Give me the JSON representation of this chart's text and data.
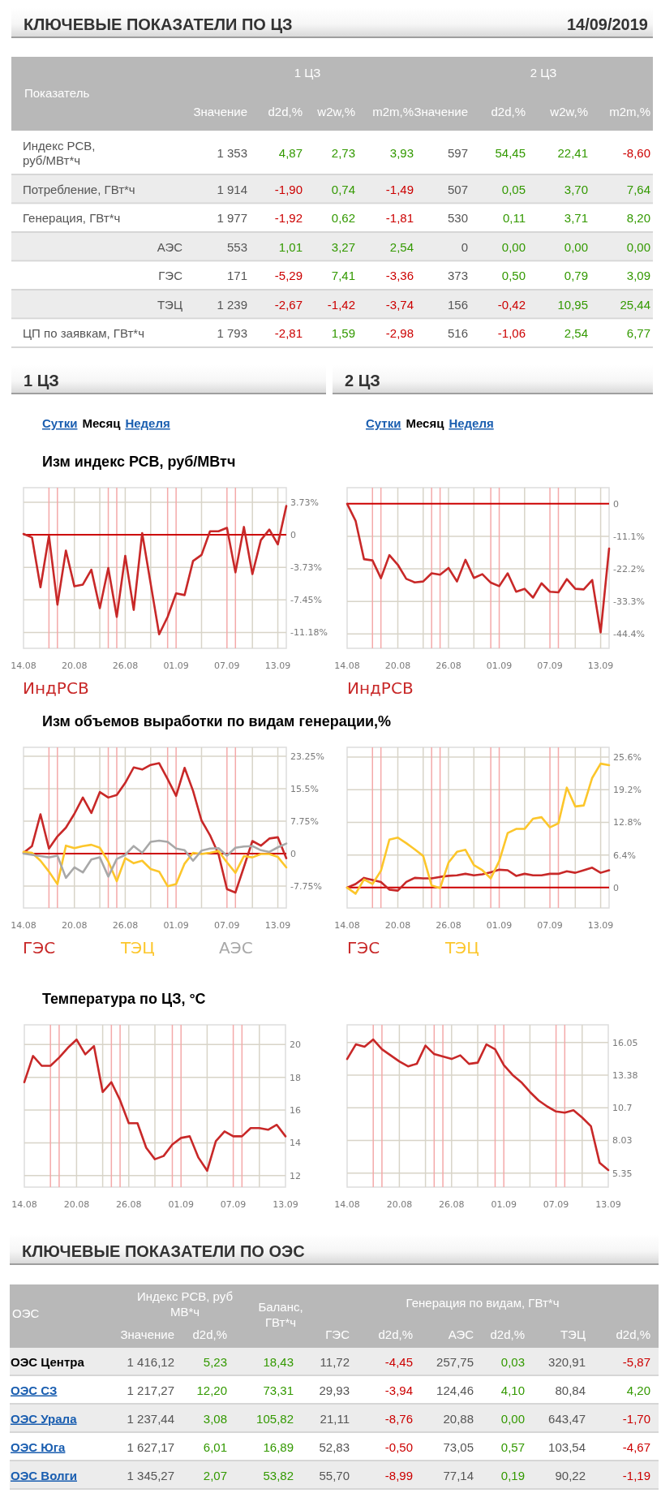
{
  "chart_data": [
    {
      "type": "other",
      "title": "КЛЮЧЕВЫЕ ПОКАЗАТЕЛИ ПО ЦЗ",
      "subtitle": "14/09/2019",
      "ylabel": "Показатель",
      "annotations": [
        "1 ЦЗ",
        "2 ЦЗ"
      ],
      "categories": [
        "Значение",
        "d2d,%",
        "w2w,%",
        "m2m,%",
        "Значение",
        "d2d,%",
        "w2w,%",
        "m2m,%"
      ],
      "y_categories": [
        "Индекс РСВ,\nруб/МВт*ч",
        "Потребление, ГВт*ч",
        "Генерация, ГВт*ч",
        "АЭС",
        "ГЭС",
        "ТЭЦ",
        "ЦП по заявкам, ГВт*ч"
      ],
      "cell_labels": [
        [
          "1 353",
          "4,87",
          "2,73",
          "3,93",
          "597",
          "54,45",
          "22,41",
          "-8,60"
        ],
        [
          "1 914",
          "-1,90",
          "0,74",
          "-1,49",
          "507",
          "0,05",
          "3,70",
          "7,64"
        ],
        [
          "1 977",
          "-1,92",
          "0,62",
          "-1,81",
          "530",
          "0,11",
          "3,71",
          "8,20"
        ],
        [
          "553",
          "1,01",
          "3,27",
          "2,54",
          "0",
          "0,00",
          "0,00",
          "0,00"
        ],
        [
          "171",
          "-5,29",
          "7,41",
          "-3,36",
          "373",
          "0,50",
          "0,79",
          "3,09"
        ],
        [
          "1 239",
          "-2,67",
          "-1,42",
          "-3,74",
          "156",
          "-0,42",
          "10,95",
          "25,44"
        ],
        [
          "1 793",
          "-2,81",
          "1,59",
          "-2,98",
          "516",
          "-1,06",
          "2,54",
          "6,77"
        ]
      ],
      "colors": [
        [
          "#555555",
          "#555555",
          "#339900",
          "#339900",
          "#339900",
          "#555555",
          "#339900",
          "#339900",
          "#cc0000"
        ],
        [
          "#555555",
          "#555555",
          "#cc0000",
          "#339900",
          "#cc0000",
          "#555555",
          "#339900",
          "#339900",
          "#339900"
        ],
        [
          "#555555",
          "#555555",
          "#cc0000",
          "#339900",
          "#cc0000",
          "#555555",
          "#339900",
          "#339900",
          "#339900"
        ],
        [
          "#555555",
          "#555555",
          "#339900",
          "#339900",
          "#339900",
          "#555555",
          "#339900",
          "#339900",
          "#339900"
        ],
        [
          "#555555",
          "#555555",
          "#cc0000",
          "#339900",
          "#cc0000",
          "#555555",
          "#339900",
          "#339900",
          "#339900"
        ],
        [
          "#555555",
          "#555555",
          "#cc0000",
          "#cc0000",
          "#cc0000",
          "#555555",
          "#cc0000",
          "#339900",
          "#339900"
        ],
        [
          "#555555",
          "#555555",
          "#cc0000",
          "#339900",
          "#cc0000",
          "#555555",
          "#cc0000",
          "#339900",
          "#339900"
        ]
      ]
    },
    {
      "type": "other",
      "title": "1 ЦЗ",
      "annotations": [
        "Сутки",
        "Месяц",
        "Неделя"
      ],
      "colors": [
        "#1a5eb0",
        "#000000",
        "#1a5eb0"
      ]
    },
    {
      "type": "other",
      "title": "2 ЦЗ",
      "annotations": [
        "Сутки",
        "Месяц",
        "Неделя"
      ],
      "colors": [
        "#1a5eb0",
        "#000000",
        "#1a5eb0"
      ]
    },
    {
      "type": "line",
      "title": "Изм индекс РСВ, руб/МВтч",
      "x": [
        "--08-14",
        "--08-15",
        "--08-16",
        "--08-17",
        "--08-18",
        "--08-19",
        "--08-20",
        "--08-21",
        "--08-22",
        "--08-23",
        "--08-24",
        "--08-25",
        "--08-26",
        "--08-27",
        "--08-28",
        "--08-29",
        "--08-30",
        "--08-31",
        "--09-01",
        "--09-02",
        "--09-03",
        "--09-04",
        "--09-05",
        "--09-06",
        "--09-07",
        "--09-08",
        "--09-09",
        "--09-10",
        "--09-11",
        "--09-12",
        "--09-13",
        "--09-14"
      ],
      "series": [
        {
          "name": "ИндРСВ",
          "color": "#c82828",
          "values": [
            0.1,
            -0.3,
            -6.0,
            -0.1,
            -8.0,
            -1.8,
            -5.9,
            -5.7,
            -4.0,
            -8.4,
            -3.8,
            -9.4,
            -2.4,
            -8.6,
            0.2,
            -5.6,
            -11.4,
            -9.4,
            -6.7,
            -6.9,
            -3.0,
            -2.3,
            0.4,
            0.4,
            0.8,
            -4.3,
            0.9,
            -4.5,
            -0.6,
            0.6,
            -1.1,
            3.3
          ]
        }
      ],
      "xlim": [
        "--08-14",
        "--09-14"
      ],
      "xticks": [
        {
          "value": "--08-14",
          "label": "14.08"
        },
        {
          "value": "--08-20",
          "label": "20.08"
        },
        {
          "value": "--08-26",
          "label": "26.08"
        },
        {
          "value": "--09-01",
          "label": "01.09"
        },
        {
          "value": "--09-07",
          "label": "07.09"
        },
        {
          "value": "--09-13",
          "label": "13.09"
        }
      ],
      "ylim": [
        -13,
        5.4
      ],
      "yticks": [
        {
          "value": 3.73,
          "label": "3.73%"
        },
        0,
        {
          "value": -3.73,
          "label": "-3.73%"
        },
        {
          "value": -7.45,
          "label": "-7.45%"
        },
        {
          "value": -11.18,
          "label": "-11.18%"
        }
      ],
      "grid": "y",
      "legend": "bottom",
      "ref_lines": [
        {
          "axis": "x",
          "value": "--08-17",
          "color": "#f4a9a9"
        },
        {
          "axis": "x",
          "value": "--08-18",
          "color": "#f4a9a9"
        },
        {
          "axis": "x",
          "value": "--08-20",
          "color": "#d8d4c8"
        },
        {
          "axis": "x",
          "value": "--08-23",
          "color": "#d8d4c8"
        },
        {
          "axis": "x",
          "value": "--08-24",
          "color": "#f4a9a9"
        },
        {
          "axis": "x",
          "value": "--08-25",
          "color": "#f4a9a9"
        },
        {
          "axis": "x",
          "value": "--08-26",
          "color": "#d8d4c8"
        },
        {
          "axis": "x",
          "value": "--08-29",
          "color": "#d8d4c8"
        },
        {
          "axis": "x",
          "value": "--08-31",
          "color": "#f4a9a9"
        },
        {
          "axis": "x",
          "value": "--09-01",
          "color": "#f4a9a9"
        },
        {
          "axis": "x",
          "value": "--09-04",
          "color": "#d8d4c8"
        },
        {
          "axis": "x",
          "value": "--09-07",
          "color": "#f4a9a9"
        },
        {
          "axis": "x",
          "value": "--09-08",
          "color": "#f4a9a9"
        },
        {
          "axis": "x",
          "value": "--09-10",
          "color": "#d8d4c8"
        },
        {
          "axis": "x",
          "value": "--09-13",
          "color": "#d8d4c8"
        },
        {
          "axis": "y",
          "value": 0,
          "color": "#cc0000"
        }
      ]
    },
    {
      "type": "line",
      "x": [
        "--08-14",
        "--08-15",
        "--08-16",
        "--08-17",
        "--08-18",
        "--08-19",
        "--08-20",
        "--08-21",
        "--08-22",
        "--08-23",
        "--08-24",
        "--08-25",
        "--08-26",
        "--08-27",
        "--08-28",
        "--08-29",
        "--08-30",
        "--08-31",
        "--09-01",
        "--09-02",
        "--09-03",
        "--09-04",
        "--09-05",
        "--09-06",
        "--09-07",
        "--09-08",
        "--09-09",
        "--09-10",
        "--09-11",
        "--09-12",
        "--09-13",
        "--09-14"
      ],
      "series": [
        {
          "name": "ИндРСВ",
          "color": "#c82828",
          "values": [
            0,
            -5.8,
            -18.9,
            -19.3,
            -25.4,
            -17.5,
            -20.8,
            -25.6,
            -26.8,
            -26.5,
            -23.7,
            -24.2,
            -21.9,
            -26.5,
            -19.1,
            -25.3,
            -24.0,
            -26.9,
            -28.1,
            -23.7,
            -30.0,
            -29.0,
            -32.0,
            -27.1,
            -30.0,
            -30.2,
            -25.7,
            -29.0,
            -29.2,
            -26.0,
            -43.9,
            -15.3
          ]
        }
      ],
      "xlim": [
        "--08-14",
        "--09-14"
      ],
      "xticks": [
        {
          "value": "--08-14",
          "label": "14.08"
        },
        {
          "value": "--08-20",
          "label": "20.08"
        },
        {
          "value": "--08-26",
          "label": "26.08"
        },
        {
          "value": "--09-01",
          "label": "01.09"
        },
        {
          "value": "--09-07",
          "label": "07.09"
        },
        {
          "value": "--09-13",
          "label": "13.09"
        }
      ],
      "ylim": [
        -49.3,
        5.5
      ],
      "yticks": [
        0,
        {
          "value": -11.1,
          "label": "-11.1%"
        },
        {
          "value": -22.2,
          "label": "-22.2%"
        },
        {
          "value": -33.3,
          "label": "-33.3%"
        },
        {
          "value": -44.4,
          "label": "-44.4%"
        }
      ],
      "grid": "y",
      "legend": "bottom",
      "ref_lines": [
        {
          "axis": "x",
          "value": "--08-17",
          "color": "#f4a9a9"
        },
        {
          "axis": "x",
          "value": "--08-18",
          "color": "#f4a9a9"
        },
        {
          "axis": "x",
          "value": "--08-20",
          "color": "#d8d4c8"
        },
        {
          "axis": "x",
          "value": "--08-23",
          "color": "#d8d4c8"
        },
        {
          "axis": "x",
          "value": "--08-24",
          "color": "#f4a9a9"
        },
        {
          "axis": "x",
          "value": "--08-25",
          "color": "#f4a9a9"
        },
        {
          "axis": "x",
          "value": "--08-26",
          "color": "#d8d4c8"
        },
        {
          "axis": "x",
          "value": "--08-29",
          "color": "#d8d4c8"
        },
        {
          "axis": "x",
          "value": "--08-31",
          "color": "#f4a9a9"
        },
        {
          "axis": "x",
          "value": "--09-01",
          "color": "#f4a9a9"
        },
        {
          "axis": "x",
          "value": "--09-04",
          "color": "#d8d4c8"
        },
        {
          "axis": "x",
          "value": "--09-07",
          "color": "#f4a9a9"
        },
        {
          "axis": "x",
          "value": "--09-08",
          "color": "#f4a9a9"
        },
        {
          "axis": "x",
          "value": "--09-10",
          "color": "#d8d4c8"
        },
        {
          "axis": "x",
          "value": "--09-13",
          "color": "#d8d4c8"
        },
        {
          "axis": "y",
          "value": 0,
          "color": "#cc0000"
        }
      ]
    },
    {
      "type": "line",
      "title": "Изм объемов выработки по видам генерации,%",
      "x": [
        "--08-14",
        "--08-15",
        "--08-16",
        "--08-17",
        "--08-18",
        "--08-19",
        "--08-20",
        "--08-21",
        "--08-22",
        "--08-23",
        "--08-24",
        "--08-25",
        "--08-26",
        "--08-27",
        "--08-28",
        "--08-29",
        "--08-30",
        "--08-31",
        "--09-01",
        "--09-02",
        "--09-03",
        "--09-04",
        "--09-05",
        "--09-06",
        "--09-07",
        "--09-08",
        "--09-09",
        "--09-10",
        "--09-11",
        "--09-12",
        "--09-13",
        "--09-14"
      ],
      "series": [
        {
          "name": "ГЭС",
          "color": "#c82828",
          "values": [
            0.2,
            1.8,
            9.4,
            1.2,
            4.1,
            6.2,
            9.5,
            13.4,
            9.7,
            14.7,
            13.4,
            14.0,
            16.9,
            20.6,
            20.1,
            21.2,
            21.6,
            17.8,
            13.8,
            20.5,
            15.0,
            7.9,
            4.4,
            -0.1,
            -8.5,
            -9.3,
            -3.2,
            3.0,
            1.9,
            3.6,
            3.9,
            -1.1
          ]
        },
        {
          "name": "ТЭЦ",
          "color": "#fcc62b",
          "values": [
            0.4,
            0.2,
            -1.7,
            -4.3,
            -7.3,
            1.9,
            1.3,
            1.8,
            2.1,
            1.4,
            -1.9,
            -6.6,
            -1.1,
            -2.3,
            -1.7,
            -3.7,
            -4.3,
            -7.8,
            -7.3,
            -2.4,
            0.2,
            -0.1,
            0.2,
            0.6,
            -2.1,
            -4.6,
            -0.6,
            -0.9,
            -0.1,
            -0.1,
            -0.8,
            -3.3
          ]
        },
        {
          "name": "АЭС",
          "color": "#a8a8a8",
          "values": [
            0,
            -0.3,
            -0.6,
            -0.9,
            -0.5,
            -5.8,
            -3.3,
            -4.5,
            -1.4,
            -0.9,
            -5.5,
            -1.3,
            -0.3,
            1.8,
            0.2,
            2.8,
            3.1,
            2.8,
            1.2,
            0.8,
            -1.7,
            0.7,
            1.2,
            1.3,
            -0.5,
            1.4,
            1.7,
            1.8,
            0.8,
            0.4,
            1.5,
            2.4
          ]
        }
      ],
      "xlim": [
        "--08-14",
        "--09-14"
      ],
      "xticks": [
        {
          "value": "--08-14",
          "label": "14.08"
        },
        {
          "value": "--08-20",
          "label": "20.08"
        },
        {
          "value": "--08-26",
          "label": "26.08"
        },
        {
          "value": "--09-01",
          "label": "01.09"
        },
        {
          "value": "--09-07",
          "label": "07.09"
        },
        {
          "value": "--09-13",
          "label": "13.09"
        }
      ],
      "ylim": [
        -13,
        25.4
      ],
      "yticks": [
        {
          "value": 23.25,
          "label": "23.25%"
        },
        {
          "value": 15.5,
          "label": "15.5%"
        },
        {
          "value": 7.75,
          "label": "7.75%"
        },
        0,
        {
          "value": -7.75,
          "label": "-7.75%"
        }
      ],
      "grid": "y",
      "legend": "bottom",
      "ref_lines": [
        {
          "axis": "x",
          "value": "--08-17",
          "color": "#f4a9a9"
        },
        {
          "axis": "x",
          "value": "--08-18",
          "color": "#f4a9a9"
        },
        {
          "axis": "x",
          "value": "--08-20",
          "color": "#d8d4c8"
        },
        {
          "axis": "x",
          "value": "--08-23",
          "color": "#d8d4c8"
        },
        {
          "axis": "x",
          "value": "--08-24",
          "color": "#f4a9a9"
        },
        {
          "axis": "x",
          "value": "--08-25",
          "color": "#f4a9a9"
        },
        {
          "axis": "x",
          "value": "--08-26",
          "color": "#d8d4c8"
        },
        {
          "axis": "x",
          "value": "--08-29",
          "color": "#d8d4c8"
        },
        {
          "axis": "x",
          "value": "--08-31",
          "color": "#f4a9a9"
        },
        {
          "axis": "x",
          "value": "--09-01",
          "color": "#f4a9a9"
        },
        {
          "axis": "x",
          "value": "--09-04",
          "color": "#d8d4c8"
        },
        {
          "axis": "x",
          "value": "--09-07",
          "color": "#f4a9a9"
        },
        {
          "axis": "x",
          "value": "--09-08",
          "color": "#f4a9a9"
        },
        {
          "axis": "x",
          "value": "--09-10",
          "color": "#d8d4c8"
        },
        {
          "axis": "x",
          "value": "--09-13",
          "color": "#d8d4c8"
        },
        {
          "axis": "y",
          "value": 0,
          "color": "#cc0000"
        }
      ]
    },
    {
      "type": "line",
      "x": [
        "--08-14",
        "--08-15",
        "--08-16",
        "--08-17",
        "--08-18",
        "--08-19",
        "--08-20",
        "--08-21",
        "--08-22",
        "--08-23",
        "--08-24",
        "--08-25",
        "--08-26",
        "--08-27",
        "--08-28",
        "--08-29",
        "--08-30",
        "--08-31",
        "--09-01",
        "--09-02",
        "--09-03",
        "--09-04",
        "--09-05",
        "--09-06",
        "--09-07",
        "--09-08",
        "--09-09",
        "--09-10",
        "--09-11",
        "--09-12",
        "--09-13",
        "--09-14"
      ],
      "series": [
        {
          "name": "ГЭС",
          "color": "#c82828",
          "values": [
            0,
            0.7,
            1.9,
            1.5,
            1.1,
            -0.4,
            -0.6,
            1.1,
            1.9,
            1.8,
            1.8,
            2.1,
            2.3,
            2.4,
            2.7,
            2.4,
            2.6,
            3.0,
            3.5,
            3.4,
            2.3,
            2.7,
            2.4,
            2.4,
            2.7,
            2.7,
            3.2,
            2.9,
            3.4,
            3.9,
            2.9,
            3.4
          ]
        },
        {
          "name": "ТЭЦ",
          "color": "#fcc62b",
          "values": [
            0,
            -1.2,
            1.6,
            0.7,
            3.3,
            9.4,
            9.8,
            8.7,
            7.5,
            6.2,
            0.4,
            -0.1,
            4.9,
            7.0,
            7.4,
            4.4,
            3.4,
            1.8,
            5.2,
            10.7,
            11.5,
            11.5,
            13.5,
            13.8,
            11.8,
            12.6,
            19.6,
            15.9,
            16.1,
            21.5,
            24.3,
            24.0
          ]
        }
      ],
      "xlim": [
        "--08-14",
        "--09-14"
      ],
      "xticks": [
        {
          "value": "--08-14",
          "label": "14.08"
        },
        {
          "value": "--08-20",
          "label": "20.08"
        },
        {
          "value": "--08-26",
          "label": "26.08"
        },
        {
          "value": "--09-01",
          "label": "01.09"
        },
        {
          "value": "--09-07",
          "label": "07.09"
        },
        {
          "value": "--09-13",
          "label": "13.09"
        }
      ],
      "ylim": [
        -4,
        27.5
      ],
      "yticks": [
        {
          "value": 25.6,
          "label": "25.6%"
        },
        {
          "value": 19.2,
          "label": "19.2%"
        },
        {
          "value": 12.8,
          "label": "12.8%"
        },
        {
          "value": 6.4,
          "label": "6.4%"
        },
        0
      ],
      "grid": "y",
      "legend": "bottom",
      "ref_lines": [
        {
          "axis": "x",
          "value": "--08-17",
          "color": "#f4a9a9"
        },
        {
          "axis": "x",
          "value": "--08-18",
          "color": "#f4a9a9"
        },
        {
          "axis": "x",
          "value": "--08-20",
          "color": "#d8d4c8"
        },
        {
          "axis": "x",
          "value": "--08-23",
          "color": "#d8d4c8"
        },
        {
          "axis": "x",
          "value": "--08-24",
          "color": "#f4a9a9"
        },
        {
          "axis": "x",
          "value": "--08-25",
          "color": "#f4a9a9"
        },
        {
          "axis": "x",
          "value": "--08-26",
          "color": "#d8d4c8"
        },
        {
          "axis": "x",
          "value": "--08-29",
          "color": "#d8d4c8"
        },
        {
          "axis": "x",
          "value": "--08-31",
          "color": "#f4a9a9"
        },
        {
          "axis": "x",
          "value": "--09-01",
          "color": "#f4a9a9"
        },
        {
          "axis": "x",
          "value": "--09-04",
          "color": "#d8d4c8"
        },
        {
          "axis": "x",
          "value": "--09-07",
          "color": "#f4a9a9"
        },
        {
          "axis": "x",
          "value": "--09-08",
          "color": "#f4a9a9"
        },
        {
          "axis": "x",
          "value": "--09-10",
          "color": "#d8d4c8"
        },
        {
          "axis": "x",
          "value": "--09-13",
          "color": "#d8d4c8"
        },
        {
          "axis": "y",
          "value": 0,
          "color": "#cc0000"
        }
      ]
    },
    {
      "type": "line",
      "title": "Температура по ЦЗ, °C",
      "x": [
        "--08-14",
        "--08-15",
        "--08-16",
        "--08-17",
        "--08-18",
        "--08-19",
        "--08-20",
        "--08-21",
        "--08-22",
        "--08-23",
        "--08-24",
        "--08-25",
        "--08-26",
        "--08-27",
        "--08-28",
        "--08-29",
        "--08-30",
        "--08-31",
        "--09-01",
        "--09-02",
        "--09-03",
        "--09-04",
        "--09-05",
        "--09-06",
        "--09-07",
        "--09-08",
        "--09-09",
        "--09-10",
        "--09-11",
        "--09-12",
        "--09-13"
      ],
      "series": [
        {
          "color": "#c82828",
          "values": [
            17.7,
            19.3,
            18.7,
            18.7,
            19.2,
            19.8,
            20.3,
            19.4,
            19.9,
            17.1,
            17.7,
            16.6,
            15.2,
            15.2,
            13.7,
            13.0,
            13.2,
            13.9,
            14.3,
            14.4,
            13.1,
            12.3,
            14.1,
            14.7,
            14.4,
            14.4,
            14.9,
            14.9,
            14.8,
            15.1,
            14.4
          ]
        }
      ],
      "xlim": [
        "--08-14",
        "--09-13"
      ],
      "xticks": [
        {
          "value": "--08-14",
          "label": "14.08"
        },
        {
          "value": "--08-20",
          "label": "20.08"
        },
        {
          "value": "--08-26",
          "label": "26.08"
        },
        {
          "value": "--09-01",
          "label": "01.09"
        },
        {
          "value": "--09-07",
          "label": "07.09"
        },
        {
          "value": "--09-13",
          "label": "13.09"
        }
      ],
      "ylim": [
        11.3,
        21.2
      ],
      "yticks": [
        20,
        18,
        16,
        14,
        12
      ],
      "grid": "y",
      "ref_lines": [
        {
          "axis": "x",
          "value": "--08-17",
          "color": "#f4a9a9"
        },
        {
          "axis": "x",
          "value": "--08-18",
          "color": "#f4a9a9"
        },
        {
          "axis": "x",
          "value": "--08-20",
          "color": "#d8d4c8"
        },
        {
          "axis": "x",
          "value": "--08-23",
          "color": "#d8d4c8"
        },
        {
          "axis": "x",
          "value": "--08-24",
          "color": "#f4a9a9"
        },
        {
          "axis": "x",
          "value": "--08-25",
          "color": "#f4a9a9"
        },
        {
          "axis": "x",
          "value": "--08-26",
          "color": "#d8d4c8"
        },
        {
          "axis": "x",
          "value": "--08-29",
          "color": "#d8d4c8"
        },
        {
          "axis": "x",
          "value": "--08-31",
          "color": "#f4a9a9"
        },
        {
          "axis": "x",
          "value": "--09-01",
          "color": "#f4a9a9"
        },
        {
          "axis": "x",
          "value": "--09-04",
          "color": "#d8d4c8"
        },
        {
          "axis": "x",
          "value": "--09-07",
          "color": "#f4a9a9"
        },
        {
          "axis": "x",
          "value": "--09-08",
          "color": "#f4a9a9"
        },
        {
          "axis": "x",
          "value": "--09-10",
          "color": "#d8d4c8"
        }
      ]
    },
    {
      "type": "line",
      "x": [
        "--08-14",
        "--08-15",
        "--08-16",
        "--08-17",
        "--08-18",
        "--08-19",
        "--08-20",
        "--08-21",
        "--08-22",
        "--08-23",
        "--08-24",
        "--08-25",
        "--08-26",
        "--08-27",
        "--08-28",
        "--08-29",
        "--08-30",
        "--08-31",
        "--09-01",
        "--09-02",
        "--09-03",
        "--09-04",
        "--09-05",
        "--09-06",
        "--09-07",
        "--09-08",
        "--09-09",
        "--09-10",
        "--09-11",
        "--09-12",
        "--09-13"
      ],
      "series": [
        {
          "color": "#c82828",
          "values": [
            14.7,
            15.9,
            15.7,
            16.3,
            15.5,
            15.0,
            14.5,
            14.1,
            14.3,
            15.8,
            15.1,
            14.9,
            14.7,
            15.0,
            14.3,
            14.4,
            15.9,
            15.5,
            14.2,
            13.4,
            12.8,
            12.0,
            11.3,
            10.8,
            10.4,
            10.3,
            10.5,
            9.9,
            9.2,
            6.2,
            5.6
          ]
        }
      ],
      "xlim": [
        "--08-14",
        "--09-13"
      ],
      "xticks": [
        {
          "value": "--08-14",
          "label": "14.08"
        },
        {
          "value": "--08-20",
          "label": "20.08"
        },
        {
          "value": "--08-26",
          "label": "26.08"
        },
        {
          "value": "--09-01",
          "label": "01.09"
        },
        {
          "value": "--09-07",
          "label": "07.09"
        },
        {
          "value": "--09-13",
          "label": "13.09"
        }
      ],
      "ylim": [
        4.2,
        17.5
      ],
      "yticks": [
        16.05,
        13.38,
        10.7,
        8.03,
        5.35
      ],
      "grid": "y",
      "ref_lines": [
        {
          "axis": "x",
          "value": "--08-17",
          "color": "#f4a9a9"
        },
        {
          "axis": "x",
          "value": "--08-18",
          "color": "#f4a9a9"
        },
        {
          "axis": "x",
          "value": "--08-20",
          "color": "#d8d4c8"
        },
        {
          "axis": "x",
          "value": "--08-23",
          "color": "#d8d4c8"
        },
        {
          "axis": "x",
          "value": "--08-24",
          "color": "#f4a9a9"
        },
        {
          "axis": "x",
          "value": "--08-25",
          "color": "#f4a9a9"
        },
        {
          "axis": "x",
          "value": "--08-26",
          "color": "#d8d4c8"
        },
        {
          "axis": "x",
          "value": "--08-29",
          "color": "#d8d4c8"
        },
        {
          "axis": "x",
          "value": "--08-31",
          "color": "#f4a9a9"
        },
        {
          "axis": "x",
          "value": "--09-01",
          "color": "#f4a9a9"
        },
        {
          "axis": "x",
          "value": "--09-04",
          "color": "#d8d4c8"
        },
        {
          "axis": "x",
          "value": "--09-07",
          "color": "#f4a9a9"
        },
        {
          "axis": "x",
          "value": "--09-08",
          "color": "#f4a9a9"
        },
        {
          "axis": "x",
          "value": "--09-10",
          "color": "#d8d4c8"
        }
      ]
    },
    {
      "type": "other",
      "title": "КЛЮЧЕВЫЕ ПОКАЗАТЕЛИ ПО ОЭС",
      "ylabel": "ОЭС",
      "annotations": [
        "Индекс РСВ, руб\nМВ*ч",
        "Баланс,\nГВт*ч",
        "Генерация по видам, ГВт*ч"
      ],
      "categories": [
        "Значение",
        "d2d,%",
        null,
        "ГЭС",
        "d2d,%",
        "АЭС",
        "d2d,%",
        "ТЭЦ",
        "d2d,%"
      ],
      "y_categories": [
        "ОЭС Центра",
        "ОЭС СЗ",
        "ОЭС Урала",
        "ОЭС Юга",
        "ОЭС Волги"
      ],
      "cell_labels": [
        [
          "1 416,12",
          "5,23",
          "18,43",
          "11,72",
          "-4,45",
          "257,75",
          "0,03",
          "320,91",
          "-5,87"
        ],
        [
          "1 217,27",
          "12,20",
          "73,31",
          "29,93",
          "-3,94",
          "124,46",
          "4,10",
          "80,84",
          "4,20"
        ],
        [
          "1 237,44",
          "3,08",
          "105,82",
          "21,11",
          "-8,76",
          "20,88",
          "0,00",
          "643,47",
          "-1,70"
        ],
        [
          "1 627,17",
          "6,01",
          "16,89",
          "52,83",
          "-0,50",
          "73,05",
          "0,57",
          "103,54",
          "-4,67"
        ],
        [
          "1 345,27",
          "2,07",
          "53,82",
          "55,70",
          "-8,99",
          "77,14",
          "0,19",
          "90,22",
          "-1,19"
        ]
      ],
      "colors": [
        [
          "#000000",
          "#555555",
          "#339900",
          "#339900",
          "#555555",
          "#cc0000",
          "#555555",
          "#339900",
          "#555555",
          "#cc0000"
        ],
        [
          "#1a5eb0",
          "#555555",
          "#339900",
          "#339900",
          "#555555",
          "#cc0000",
          "#555555",
          "#339900",
          "#555555",
          "#339900"
        ],
        [
          "#1a5eb0",
          "#555555",
          "#339900",
          "#339900",
          "#555555",
          "#cc0000",
          "#555555",
          "#339900",
          "#555555",
          "#cc0000"
        ],
        [
          "#1a5eb0",
          "#555555",
          "#339900",
          "#339900",
          "#555555",
          "#cc0000",
          "#555555",
          "#339900",
          "#555555",
          "#cc0000"
        ],
        [
          "#1a5eb0",
          "#555555",
          "#339900",
          "#339900",
          "#555555",
          "#cc0000",
          "#555555",
          "#339900",
          "#555555",
          "#cc0000"
        ]
      ]
    }
  ]
}
